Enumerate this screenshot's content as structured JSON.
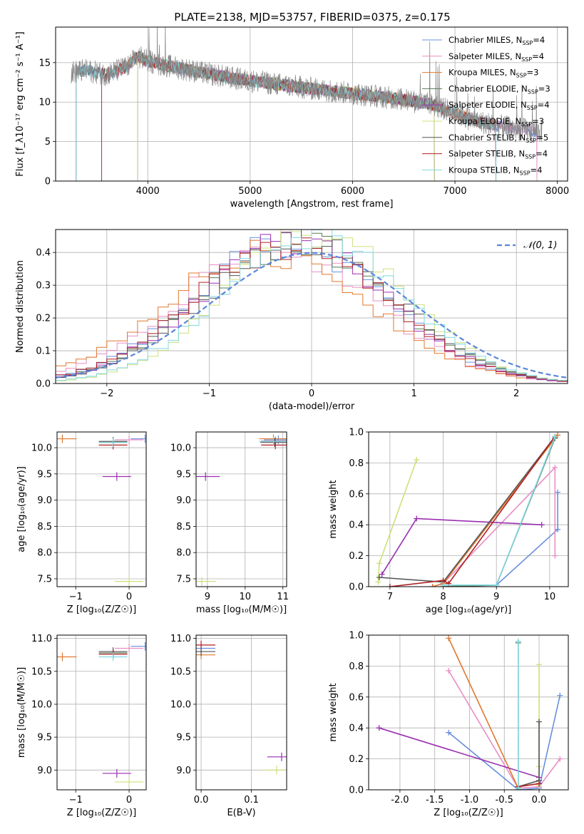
{
  "title": "PLATE=2138, MJD=53757, FIBERID=0375, z=0.175",
  "colors": {
    "Chabrier MILES": "#6a8fdc",
    "Salpeter MILES": "#e88ec4",
    "Kroupa MILES": "#e0782e",
    "Chabrier ELODIE": "#5a7a5a",
    "Salpeter ELODIE": "#9a2fb0",
    "Kroupa ELODIE": "#cde07a",
    "Chabrier STELIB": "#555555",
    "Salpeter STELIB": "#b02020",
    "Kroupa STELIB": "#7fd8e0",
    "gauss": "#5b87d8",
    "grid": "#b0b0b0"
  },
  "chart_data": [
    {
      "id": "spectrum",
      "type": "line",
      "xlabel": "wavelength [Angstrom, rest frame]",
      "ylabel": "Flux [f_λ10⁻¹⁷ erg cm⁻² s⁻¹ A⁻¹]",
      "xlim": [
        3100,
        8100
      ],
      "ylim": [
        0,
        19.5
      ],
      "xticks": [
        4000,
        5000,
        6000,
        7000,
        8000
      ],
      "yticks": [
        0,
        5,
        10,
        15
      ],
      "grid": true,
      "legend_position": "top-right",
      "legend": [
        {
          "label": "Chabrier MILES, N",
          "sub": "SSP",
          "suffix": "=4"
        },
        {
          "label": "Salpeter MILES, N",
          "sub": "SSP",
          "suffix": "=4"
        },
        {
          "label": "Kroupa MILES, N",
          "sub": "SSP",
          "suffix": "=3"
        },
        {
          "label": "Chabrier ELODIE, N",
          "sub": "SSP",
          "suffix": "=3"
        },
        {
          "label": "Salpeter ELODIE, N",
          "sub": "SSP",
          "suffix": "=4"
        },
        {
          "label": "Kroupa ELODIE, N",
          "sub": "SSP",
          "suffix": "=3"
        },
        {
          "label": "Chabrier STELIB, N",
          "sub": "SSP",
          "suffix": "=5"
        },
        {
          "label": "Salpeter STELIB, N",
          "sub": "SSP",
          "suffix": "=4"
        },
        {
          "label": "Kroupa STELIB, N",
          "sub": "SSP",
          "suffix": "=4"
        }
      ],
      "continuum": {
        "x": [
          3250,
          3400,
          3600,
          3800,
          3900,
          4000,
          4200,
          4500,
          4800,
          5000,
          5300,
          5600,
          5800,
          6000,
          6200,
          6400,
          6600,
          6800,
          7000,
          7200,
          7500,
          7800
        ],
        "y": [
          13.8,
          14.0,
          13.5,
          14.5,
          15.8,
          15.2,
          14.6,
          13.8,
          13.1,
          12.7,
          12.2,
          11.7,
          11.4,
          11.1,
          10.8,
          10.5,
          10.1,
          9.6,
          8.6,
          7.6,
          6.8,
          6.3
        ]
      },
      "model_ranges": [
        [
          3300,
          7800
        ],
        [
          3550,
          7800
        ],
        [
          3550,
          7400
        ],
        [
          3900,
          6800
        ],
        [
          3900,
          6800
        ],
        [
          3900,
          6800
        ],
        [
          3300,
          7400
        ],
        [
          3550,
          7400
        ],
        [
          3300,
          7400
        ]
      ]
    },
    {
      "id": "residuals",
      "type": "line",
      "xlabel": "(data-model)/error",
      "ylabel": "Normed distribution",
      "xlim": [
        -2.5,
        2.5
      ],
      "ylim": [
        0,
        0.47
      ],
      "xticks": [
        -2,
        -1,
        0,
        1,
        2
      ],
      "yticks": [
        0.0,
        0.1,
        0.2,
        0.3,
        0.4
      ],
      "grid": true,
      "gauss_label": "𝒩(0, 1)",
      "gauss_mu": 0,
      "gauss_sigma": 1,
      "hist_shifts": [
        -0.22,
        -0.35,
        -0.42,
        -0.15,
        -0.18,
        0.02,
        -0.12,
        -0.2,
        0.0
      ],
      "hist_sigma": [
        0.93,
        0.97,
        1.0,
        0.93,
        0.92,
        0.87,
        0.93,
        0.94,
        0.88
      ]
    },
    {
      "id": "age_vs_Z",
      "type": "scatter",
      "xlabel": "Z [log₁₀(Z/Z☉)]",
      "ylabel": "age  [log₁₀(age/yr)]",
      "xlim": [
        -1.35,
        0.32
      ],
      "ylim": [
        7.35,
        10.3
      ],
      "xticks": [
        -1,
        0
      ],
      "yticks": [
        7.5,
        8.0,
        8.5,
        9.0,
        9.5,
        10.0
      ],
      "grid": true,
      "points": [
        {
          "m": "Chabrier MILES",
          "x": 0.3,
          "y": 10.17
        },
        {
          "m": "Salpeter MILES",
          "x": 0.0,
          "y": 10.15
        },
        {
          "m": "Kroupa MILES",
          "x": -1.25,
          "y": 10.17
        },
        {
          "m": "Chabrier ELODIE",
          "x": -0.3,
          "y": 10.1
        },
        {
          "m": "Salpeter ELODIE",
          "x": -0.23,
          "y": 9.45
        },
        {
          "m": "Kroupa ELODIE",
          "x": 0.0,
          "y": 7.45
        },
        {
          "m": "Chabrier STELIB",
          "x": -0.3,
          "y": 10.12
        },
        {
          "m": "Salpeter STELIB",
          "x": -0.3,
          "y": 10.05
        },
        {
          "m": "Kroupa STELIB",
          "x": -0.3,
          "y": 10.1
        }
      ]
    },
    {
      "id": "age_vs_mass",
      "type": "scatter",
      "xlabel": "mass [log₁₀(M/M☉)]",
      "ylabel": "",
      "xlim": [
        8.7,
        11.1
      ],
      "ylim": [
        7.35,
        10.3
      ],
      "xticks": [
        9,
        10,
        11
      ],
      "yticks": [
        7.5,
        8.0,
        8.5,
        9.0,
        9.5,
        10.0
      ],
      "grid": true,
      "points": [
        {
          "m": "Chabrier MILES",
          "x": 10.88,
          "y": 10.15
        },
        {
          "m": "Salpeter MILES",
          "x": 10.8,
          "y": 10.13
        },
        {
          "m": "Kroupa MILES",
          "x": 10.75,
          "y": 10.17
        },
        {
          "m": "Chabrier ELODIE",
          "x": 10.8,
          "y": 10.12
        },
        {
          "m": "Salpeter ELODIE",
          "x": 8.95,
          "y": 9.45
        },
        {
          "m": "Kroupa ELODIE",
          "x": 8.85,
          "y": 7.45
        },
        {
          "m": "Chabrier STELIB",
          "x": 10.78,
          "y": 10.1
        },
        {
          "m": "Salpeter STELIB",
          "x": 10.8,
          "y": 10.05
        },
        {
          "m": "Kroupa STELIB",
          "x": 10.75,
          "y": 10.12
        }
      ]
    },
    {
      "id": "weight_vs_age",
      "type": "line",
      "xlabel": "age  [log₁₀(age/yr)]",
      "ylabel": "mass weight",
      "xlim": [
        6.6,
        10.35
      ],
      "ylim": [
        0,
        1.0
      ],
      "xticks": [
        7,
        8,
        9,
        10
      ],
      "yticks": [
        0.0,
        0.2,
        0.4,
        0.6,
        0.8,
        1.0
      ],
      "grid": true,
      "series": [
        {
          "m": "Chabrier MILES",
          "x": [
            8.0,
            9.0,
            10.15,
            10.15
          ],
          "y": [
            0.0,
            0.01,
            0.37,
            0.61
          ]
        },
        {
          "m": "Salpeter MILES",
          "x": [
            7.8,
            8.0,
            10.1,
            10.1
          ],
          "y": [
            0.0,
            0.02,
            0.77,
            0.2
          ]
        },
        {
          "m": "Kroupa MILES",
          "x": [
            7.8,
            8.0,
            10.15
          ],
          "y": [
            0.0,
            0.02,
            0.98
          ]
        },
        {
          "m": "Chabrier ELODIE",
          "x": [
            8.0,
            9.0,
            10.1
          ],
          "y": [
            0.0,
            0.01,
            0.96
          ]
        },
        {
          "m": "Salpeter ELODIE",
          "x": [
            6.85,
            7.5,
            9.85
          ],
          "y": [
            0.08,
            0.44,
            0.4
          ]
        },
        {
          "m": "Kroupa ELODIE",
          "x": [
            6.78,
            6.8,
            7.5
          ],
          "y": [
            0.03,
            0.15,
            0.82
          ]
        },
        {
          "m": "Chabrier STELIB",
          "x": [
            6.8,
            8.0,
            10.1
          ],
          "y": [
            0.06,
            0.03,
            0.97
          ]
        },
        {
          "m": "Salpeter STELIB",
          "x": [
            7.0,
            8.0,
            8.1,
            10.1
          ],
          "y": [
            0.0,
            0.04,
            0.02,
            0.97
          ]
        },
        {
          "m": "Kroupa STELIB",
          "x": [
            8.0,
            9.0,
            10.1
          ],
          "y": [
            0.01,
            0.01,
            0.97
          ]
        }
      ]
    },
    {
      "id": "mass_vs_Z",
      "type": "scatter",
      "xlabel": "Z [log₁₀(Z/Z☉)]",
      "ylabel": "mass [log₁₀(M/M☉)]",
      "xlim": [
        -1.35,
        0.32
      ],
      "ylim": [
        8.7,
        11.05
      ],
      "xticks": [
        -1,
        0
      ],
      "yticks": [
        9.0,
        9.5,
        10.0,
        10.5,
        11.0
      ],
      "grid": true,
      "points": [
        {
          "m": "Chabrier MILES",
          "x": 0.3,
          "y": 10.88
        },
        {
          "m": "Salpeter MILES",
          "x": 0.0,
          "y": 10.85
        },
        {
          "m": "Kroupa MILES",
          "x": -1.25,
          "y": 10.72
        },
        {
          "m": "Chabrier ELODIE",
          "x": -0.3,
          "y": 10.78
        },
        {
          "m": "Salpeter ELODIE",
          "x": -0.23,
          "y": 8.95
        },
        {
          "m": "Kroupa ELODIE",
          "x": 0.0,
          "y": 8.82
        },
        {
          "m": "Chabrier STELIB",
          "x": -0.3,
          "y": 10.8
        },
        {
          "m": "Salpeter STELIB",
          "x": -0.3,
          "y": 10.76
        },
        {
          "m": "Kroupa STELIB",
          "x": -0.3,
          "y": 10.72
        }
      ]
    },
    {
      "id": "mass_vs_ebv",
      "type": "scatter",
      "xlabel": "E(B-V)",
      "ylabel": "",
      "xlim": [
        -0.01,
        0.17
      ],
      "ylim": [
        8.7,
        11.05
      ],
      "xticks": [
        0.0,
        0.1
      ],
      "yticks": [
        9.0,
        9.5,
        10.0,
        10.5,
        11.0
      ],
      "grid": true,
      "points": [
        {
          "m": "Chabrier MILES",
          "x": 0.0,
          "y": 10.85
        },
        {
          "m": "Kroupa MILES",
          "x": 0.0,
          "y": 10.75
        },
        {
          "m": "Salpeter STELIB",
          "x": 0.0,
          "y": 10.9
        },
        {
          "m": "Chabrier STELIB",
          "x": 0.0,
          "y": 10.8
        },
        {
          "m": "Salpeter ELODIE",
          "x": 0.16,
          "y": 9.2
        },
        {
          "m": "Kroupa ELODIE",
          "x": 0.15,
          "y": 9.0
        }
      ]
    },
    {
      "id": "weight_vs_Z",
      "type": "line",
      "xlabel": "Z [log₁₀(Z/Z☉)]",
      "ylabel": "mass weight",
      "xlim": [
        -2.45,
        0.42
      ],
      "ylim": [
        0,
        1.0
      ],
      "xticks": [
        -2.0,
        -1.5,
        -1.0,
        -0.5,
        0.0
      ],
      "yticks": [
        0.0,
        0.2,
        0.4,
        0.6,
        0.8,
        1.0
      ],
      "grid": true,
      "series": [
        {
          "m": "Chabrier MILES",
          "x": [
            -1.3,
            -0.3,
            0.0,
            0.3
          ],
          "y": [
            0.37,
            0.0,
            0.01,
            0.61
          ]
        },
        {
          "m": "Salpeter MILES",
          "x": [
            -1.3,
            -0.3,
            0.0,
            0.3
          ],
          "y": [
            0.77,
            0.01,
            0.02,
            0.2
          ]
        },
        {
          "m": "Kroupa MILES",
          "x": [
            -1.3,
            -0.3
          ],
          "y": [
            0.98,
            0.01
          ]
        },
        {
          "m": "Chabrier ELODIE",
          "x": [
            -0.3,
            -0.3
          ],
          "y": [
            0.0,
            0.95
          ]
        },
        {
          "m": "Salpeter ELODIE",
          "x": [
            -2.3,
            0.0
          ],
          "y": [
            0.4,
            0.08
          ]
        },
        {
          "m": "Kroupa ELODIE",
          "x": [
            0.0,
            0.0,
            0.0
          ],
          "y": [
            0.03,
            0.15,
            0.81
          ]
        },
        {
          "m": "Chabrier STELIB",
          "x": [
            -0.3,
            0.0,
            0.0
          ],
          "y": [
            0.02,
            0.06,
            0.44
          ]
        },
        {
          "m": "Salpeter STELIB",
          "x": [
            -0.3,
            0.0
          ],
          "y": [
            0.02,
            0.04
          ]
        },
        {
          "m": "Kroupa STELIB",
          "x": [
            -0.3,
            -0.3
          ],
          "y": [
            0.01,
            0.96
          ]
        }
      ]
    }
  ]
}
